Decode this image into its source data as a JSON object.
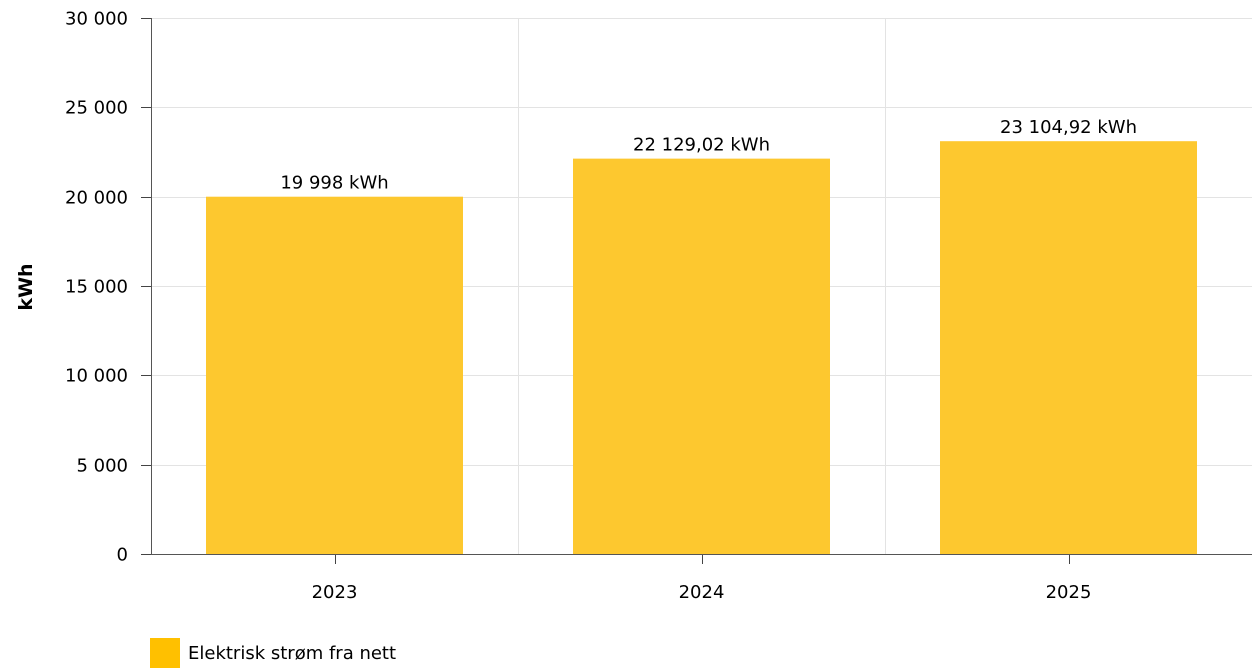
{
  "chart_data": {
    "type": "bar",
    "categories": [
      "2023",
      "2024",
      "2025"
    ],
    "series": [
      {
        "name": "Elektrisk strøm fra nett",
        "values": [
          19998,
          22129.02,
          23104.92
        ],
        "data_labels": [
          "19 998 kWh",
          "22 129,02 kWh",
          "23 104,92 kWh"
        ],
        "color": "#FDC82F"
      }
    ],
    "ylabel": "kWh",
    "xlabel": "",
    "ylim": [
      0,
      30000
    ],
    "yticks": [
      0,
      5000,
      10000,
      15000,
      20000,
      25000,
      30000
    ],
    "ytick_labels": [
      "0",
      "5 000",
      "10 000",
      "15 000",
      "20 000",
      "25 000",
      "30 000"
    ],
    "grid": true,
    "legend_position": "bottom-left"
  },
  "legend": {
    "label": "Elektrisk strøm fra nett",
    "color": "#FFC000"
  }
}
